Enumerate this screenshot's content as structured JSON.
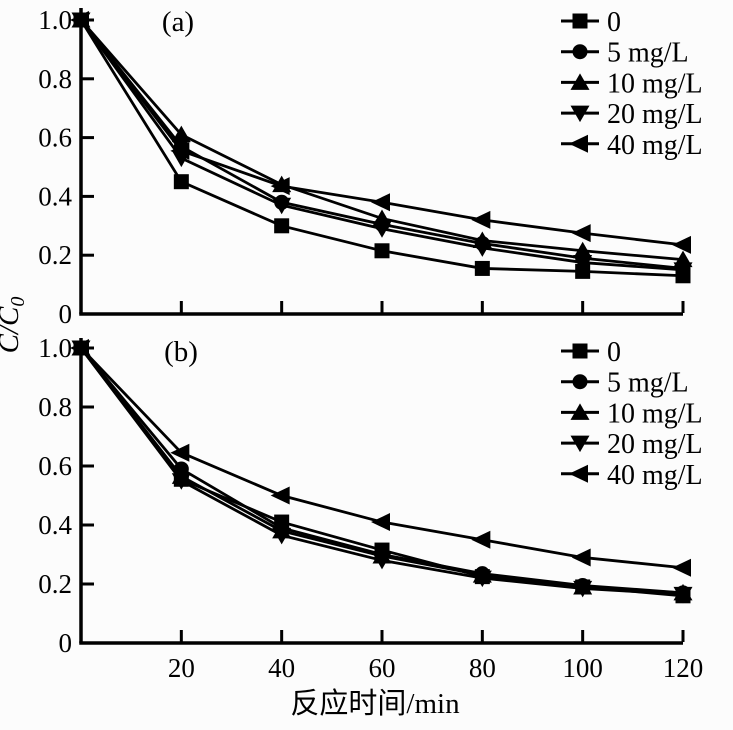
{
  "figure": {
    "xlabel": "反应时间/min",
    "ylabel_main": "C/C",
    "ylabel_sub": "0",
    "ink_color": "#000000",
    "background_color": "#fcfcfc"
  },
  "chart_data": [
    {
      "type": "line",
      "panel_label": "(a)",
      "x": [
        0,
        20,
        40,
        60,
        80,
        100,
        120
      ],
      "xlim": [
        0,
        120
      ],
      "ylim": [
        0,
        1.0
      ],
      "grid": false,
      "legend_position": "top-right",
      "xtick_values": [
        20,
        40,
        60,
        80,
        100,
        120
      ],
      "xtick_labels": [
        "20",
        "40",
        "60",
        "80",
        "100",
        "120"
      ],
      "show_xtick_labels": false,
      "ytick_values": [
        1.0,
        0.8,
        0.6,
        0.4,
        0.2,
        0
      ],
      "ytick_labels": [
        "1.0",
        "0.8",
        "0.6",
        "0.4",
        "0.2",
        "0"
      ],
      "series": [
        {
          "name": "0",
          "marker": "square",
          "values": [
            1.0,
            0.45,
            0.3,
            0.215,
            0.155,
            0.145,
            0.13
          ]
        },
        {
          "name": "5 mg/L",
          "marker": "circle",
          "values": [
            1.0,
            0.57,
            0.38,
            0.305,
            0.24,
            0.19,
            0.155
          ]
        },
        {
          "name": "10 mg/L",
          "marker": "triangle-up",
          "values": [
            1.0,
            0.61,
            0.44,
            0.325,
            0.25,
            0.215,
            0.185
          ]
        },
        {
          "name": "20 mg/L",
          "marker": "triangle-down",
          "values": [
            1.0,
            0.53,
            0.37,
            0.29,
            0.225,
            0.175,
            0.15
          ]
        },
        {
          "name": "40 mg/L",
          "marker": "triangle-left",
          "values": [
            1.0,
            0.555,
            0.435,
            0.38,
            0.32,
            0.275,
            0.235
          ]
        }
      ]
    },
    {
      "type": "line",
      "panel_label": "(b)",
      "x": [
        0,
        20,
        40,
        60,
        80,
        100,
        120
      ],
      "xlim": [
        0,
        120
      ],
      "ylim": [
        0,
        1.0
      ],
      "grid": false,
      "legend_position": "top-right",
      "xtick_values": [
        20,
        40,
        60,
        80,
        100,
        120
      ],
      "xtick_labels": [
        "20",
        "40",
        "60",
        "80",
        "100",
        "120"
      ],
      "show_xtick_labels": true,
      "ytick_values": [
        1.0,
        0.8,
        0.6,
        0.4,
        0.2,
        0
      ],
      "ytick_labels": [
        "1.0",
        "0.8",
        "0.6",
        "0.4",
        "0.2",
        "0"
      ],
      "series": [
        {
          "name": "0",
          "marker": "square",
          "values": [
            1.0,
            0.555,
            0.41,
            0.315,
            0.225,
            0.19,
            0.16
          ]
        },
        {
          "name": "5 mg/L",
          "marker": "circle",
          "values": [
            1.0,
            0.59,
            0.39,
            0.3,
            0.235,
            0.195,
            0.17
          ]
        },
        {
          "name": "10 mg/L",
          "marker": "triangle-up",
          "values": [
            1.0,
            0.565,
            0.38,
            0.295,
            0.23,
            0.19,
            0.17
          ]
        },
        {
          "name": "20 mg/L",
          "marker": "triangle-down",
          "values": [
            1.0,
            0.55,
            0.365,
            0.28,
            0.22,
            0.185,
            0.165
          ]
        },
        {
          "name": "40 mg/L",
          "marker": "triangle-left",
          "values": [
            1.0,
            0.645,
            0.5,
            0.41,
            0.35,
            0.29,
            0.255
          ]
        }
      ]
    }
  ]
}
